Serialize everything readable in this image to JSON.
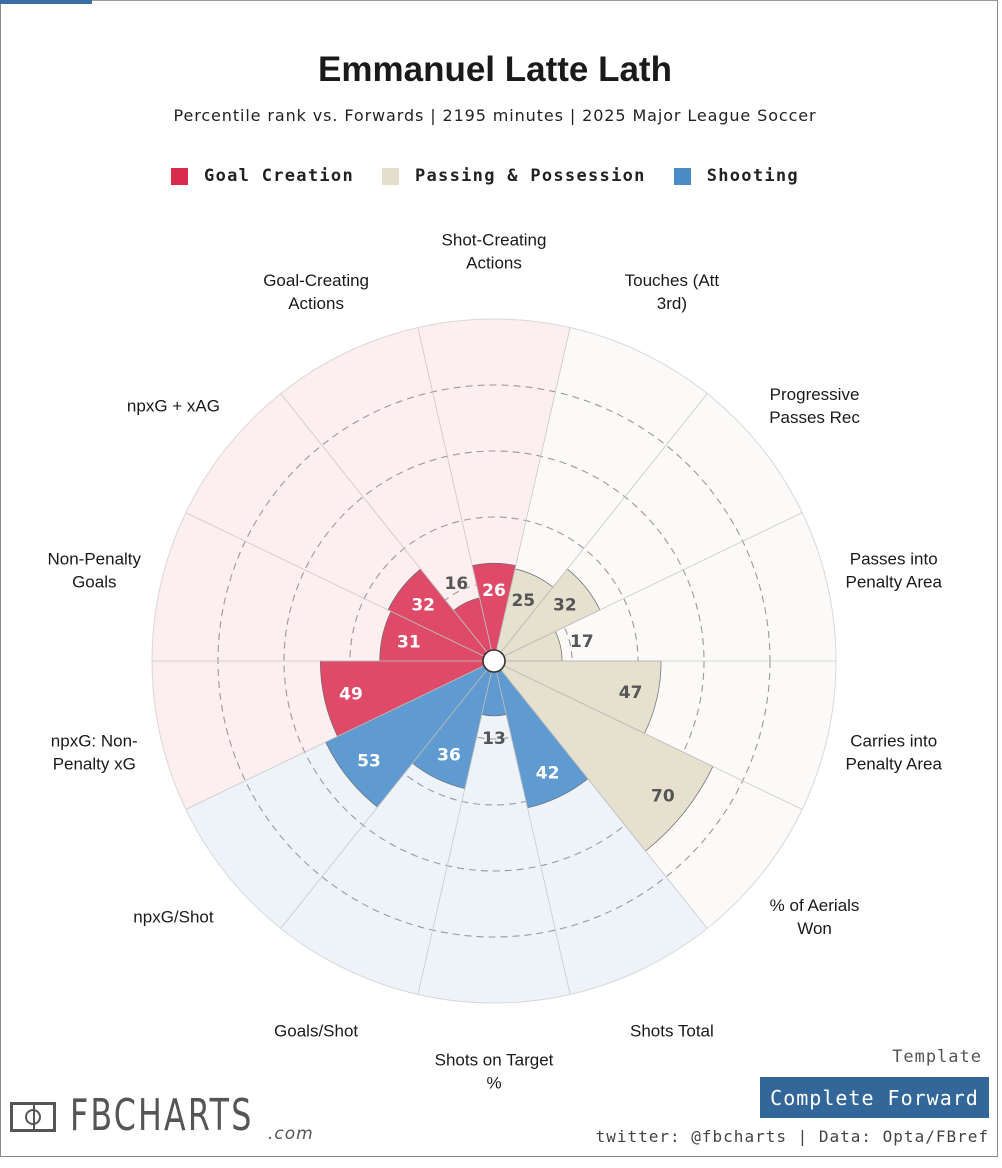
{
  "title": "Emmanuel Latte Lath",
  "subtitle": "Percentile rank vs. Forwards | 2195 minutes | 2025 Major League Soccer",
  "legend": [
    {
      "label": "Goal Creation",
      "color": "#d92b4c"
    },
    {
      "label": "Passing & Possession",
      "color": "#e3dfcc"
    },
    {
      "label": "Shooting",
      "color": "#4b8cc8"
    }
  ],
  "chart_data": {
    "type": "polar-bar",
    "range": [
      0,
      100
    ],
    "gridlines": [
      20,
      40,
      60,
      80
    ],
    "direction": "clockwise",
    "start": "top",
    "categories": [
      {
        "label": "Shot-Creating\nActions",
        "value": 26,
        "group": "Goal Creation"
      },
      {
        "label": "Touches (Att\n3rd)",
        "value": 25,
        "group": "Passing & Possession"
      },
      {
        "label": "Progressive\nPasses Rec",
        "value": 32,
        "group": "Passing & Possession"
      },
      {
        "label": "Passes into\nPenalty Area",
        "value": 17,
        "group": "Passing & Possession"
      },
      {
        "label": "Carries into\nPenalty Area",
        "value": 47,
        "group": "Passing & Possession"
      },
      {
        "label": "% of Aerials\nWon",
        "value": 70,
        "group": "Passing & Possession"
      },
      {
        "label": "Shots Total",
        "value": 42,
        "group": "Shooting"
      },
      {
        "label": "Shots on Target\n%",
        "value": 13,
        "group": "Shooting"
      },
      {
        "label": "Goals/Shot",
        "value": 36,
        "group": "Shooting"
      },
      {
        "label": "npxG/Shot",
        "value": 53,
        "group": "Shooting"
      },
      {
        "label": "npxG: Non-\nPenalty xG",
        "value": 49,
        "group": "Goal Creation"
      },
      {
        "label": "Non-Penalty\nGoals",
        "value": 31,
        "group": "Goal Creation"
      },
      {
        "label": "npxG + xAG",
        "value": 32,
        "group": "Goal Creation"
      },
      {
        "label": "Goal-Creating\nActions",
        "value": 16,
        "group": "Goal Creation"
      }
    ],
    "group_colors": {
      "Goal Creation": {
        "bar": "#e04a69",
        "bg": "#fdeef0",
        "text": "#ffffff",
        "text_inside_bg": "#555555"
      },
      "Passing & Possession": {
        "bar": "#e6e1cf",
        "bg": "#fbfaf8",
        "text": "#555555",
        "text_inside_bg": "#555555"
      },
      "Shooting": {
        "bar": "#5f9bd0",
        "bg": "#eef3fa",
        "text": "#ffffff",
        "text_inside_bg": "#555555"
      }
    }
  },
  "footer": {
    "logo_text": "FBCHARTS",
    "logo_suffix": ".com",
    "template_label": "Template",
    "template_name": "Complete Forward",
    "credits": "twitter: @fbcharts | Data: Opta/FBref"
  }
}
